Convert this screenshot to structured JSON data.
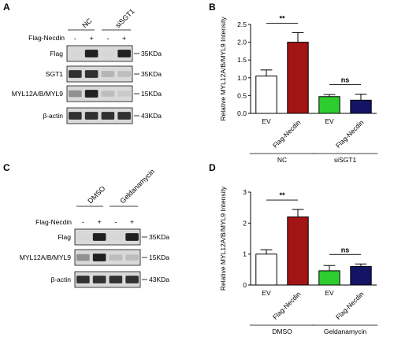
{
  "panels": {
    "A": {
      "letter": "A",
      "groups": [
        "NC",
        "siSGT1"
      ],
      "treatment_label": "Flag-Necdin",
      "lane_signs": [
        "-",
        "+",
        "-",
        "+"
      ],
      "rows": [
        {
          "label": "Flag",
          "marker": "35KDa",
          "bands": [
            0.05,
            0.95,
            0.05,
            0.95
          ]
        },
        {
          "label": "SGT1",
          "marker": "35KDa",
          "bands": [
            0.9,
            0.9,
            0.35,
            0.3
          ]
        },
        {
          "label": "MYL12A/B/MYL9",
          "marker": "15KDa",
          "bands": [
            0.55,
            0.95,
            0.3,
            0.2
          ]
        },
        {
          "label": "β-actin",
          "marker": "43KDa",
          "bands": [
            0.9,
            0.9,
            0.9,
            0.9
          ]
        }
      ]
    },
    "C": {
      "letter": "C",
      "groups": [
        "DMSO",
        "Geldanamycin"
      ],
      "treatment_label": "Flag-Necdin",
      "lane_signs": [
        "-",
        "+",
        "-",
        "+"
      ],
      "rows": [
        {
          "label": "Flag",
          "marker": "35KDa",
          "bands": [
            0.05,
            0.95,
            0.05,
            0.95
          ]
        },
        {
          "label": "MYL12A/B/MYL9",
          "marker": "15KDa",
          "bands": [
            0.55,
            0.95,
            0.3,
            0.3
          ]
        },
        {
          "label": "β-actin",
          "marker": "43KDa",
          "bands": [
            0.9,
            0.9,
            0.9,
            0.9
          ]
        }
      ]
    }
  },
  "chart_data": [
    {
      "type": "bar",
      "panel": "B",
      "ylabel": "Relative MYL12A/B/MYL9 Intensity",
      "ylim": [
        0,
        2.5
      ],
      "yticks": [
        0.0,
        0.5,
        1.0,
        1.5,
        2.0,
        2.5
      ],
      "categories": [
        "EV",
        "Flag-Necdin",
        "EV",
        "Flag-Necdin"
      ],
      "values": [
        1.05,
        2.0,
        0.47,
        0.37
      ],
      "errors": [
        0.17,
        0.27,
        0.06,
        0.17
      ],
      "colors": [
        "#ffffff",
        "#a31515",
        "#2ecc2e",
        "#141466"
      ],
      "groups": [
        {
          "label": "NC",
          "span": [
            0,
            1
          ]
        },
        {
          "label": "siSGT1",
          "span": [
            2,
            3
          ]
        }
      ],
      "significance": [
        {
          "pair": [
            0,
            1
          ],
          "label": "**"
        },
        {
          "pair": [
            2,
            3
          ],
          "label": "ns"
        }
      ]
    },
    {
      "type": "bar",
      "panel": "D",
      "ylabel": "Relative MYL12A/B/MYL9 Intensity",
      "ylim": [
        0,
        3
      ],
      "yticks": [
        0,
        1,
        2,
        3
      ],
      "categories": [
        "EV",
        "Flag-Necdin",
        "EV",
        "Flag-Necdin"
      ],
      "values": [
        1.0,
        2.2,
        0.46,
        0.6
      ],
      "errors": [
        0.14,
        0.24,
        0.17,
        0.08
      ],
      "colors": [
        "#ffffff",
        "#a31515",
        "#2ecc2e",
        "#141466"
      ],
      "groups": [
        {
          "label": "DMSO",
          "span": [
            0,
            1
          ]
        },
        {
          "label": "Geldanamycin",
          "span": [
            2,
            3
          ]
        }
      ],
      "significance": [
        {
          "pair": [
            0,
            1
          ],
          "label": "**"
        },
        {
          "pair": [
            2,
            3
          ],
          "label": "ns"
        }
      ]
    }
  ]
}
